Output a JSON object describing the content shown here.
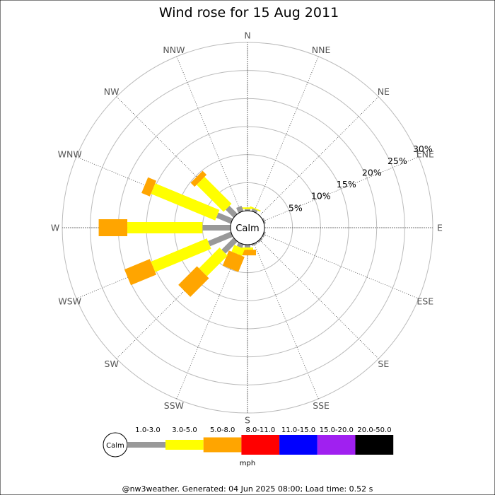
{
  "chart_data": {
    "type": "polar-bar",
    "title": "Wind rose for 15 Aug 2011",
    "directions": [
      "N",
      "NNE",
      "NE",
      "ENE",
      "E",
      "ESE",
      "SE",
      "SSE",
      "S",
      "SSW",
      "SW",
      "WSW",
      "W",
      "WNW",
      "NW",
      "NNW"
    ],
    "rings": [
      5,
      10,
      15,
      20,
      25,
      30
    ],
    "ring_labels": [
      "5%",
      "10%",
      "15%",
      "20%",
      "25%",
      "30%"
    ],
    "radial_max": 30,
    "calm_label": "Calm",
    "bins": [
      {
        "label": "1.0-3.0",
        "color": "#999999"
      },
      {
        "label": "3.0-5.0",
        "color": "#ffff00"
      },
      {
        "label": "5.0-8.0",
        "color": "#ffa500"
      },
      {
        "label": "8.0-11.0",
        "color": "#ff0000"
      },
      {
        "label": "11.0-15.0",
        "color": "#0000ff"
      },
      {
        "label": "15.0-20.0",
        "color": "#a020f0"
      },
      {
        "label": "20.0-50.0",
        "color": "#000000"
      }
    ],
    "unit": "mph",
    "data": [
      {
        "dir": "N",
        "cumulative": [
          0.3,
          0.6,
          0.6
        ]
      },
      {
        "dir": "NNE",
        "cumulative": [
          0.5,
          0.7,
          0.7
        ]
      },
      {
        "dir": "ENE",
        "cumulative": [
          0.3,
          0.3,
          0.3
        ]
      },
      {
        "dir": "ESE",
        "cumulative": [
          0.3,
          0.3,
          0.3
        ]
      },
      {
        "dir": "SE",
        "cumulative": [
          0.3,
          0.3,
          0.3
        ]
      },
      {
        "dir": "SSE",
        "cumulative": [
          0.3,
          0.3,
          0.3
        ]
      },
      {
        "dir": "S",
        "cumulative": [
          0.5,
          0.9,
          1.9
        ]
      },
      {
        "dir": "SSW",
        "cumulative": [
          0.7,
          2.0,
          4.9
        ]
      },
      {
        "dir": "SW",
        "cumulative": [
          3.0,
          8.2,
          12.9
        ]
      },
      {
        "dir": "WSW",
        "cumulative": [
          4.4,
          15.2,
          20.1
        ]
      },
      {
        "dir": "W",
        "cumulative": [
          5.0,
          18.4,
          23.5
        ]
      },
      {
        "dir": "WNW",
        "cumulative": [
          2.8,
          15.2,
          16.8
        ]
      },
      {
        "dir": "NW",
        "cumulative": [
          2.0,
          8.8,
          9.8
        ]
      },
      {
        "dir": "NNW",
        "cumulative": [
          1.0,
          1.0,
          1.0
        ]
      }
    ]
  },
  "footer": "@nw3weather. Generated: 04 Jun 2025 08:00; Load time: 0.52 s"
}
